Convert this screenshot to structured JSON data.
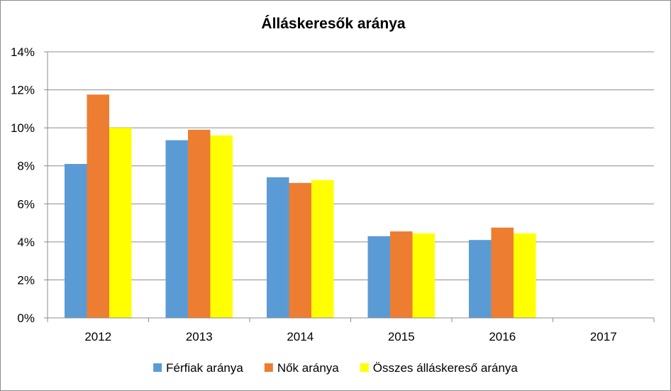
{
  "chart_data": {
    "type": "bar",
    "title": "Álláskeresők aránya",
    "categories": [
      "2012",
      "2013",
      "2014",
      "2015",
      "2016",
      "2017"
    ],
    "series": [
      {
        "name": "Férfiak aránya",
        "color": "#5B9BD5",
        "values": [
          8.1,
          9.35,
          7.4,
          4.3,
          4.1,
          null
        ]
      },
      {
        "name": "Nők aránya",
        "color": "#ED7D31",
        "values": [
          11.75,
          9.9,
          7.1,
          4.55,
          4.75,
          null
        ]
      },
      {
        "name": "Összes álláskereső aránya",
        "color": "#FFFF00",
        "values": [
          10.0,
          9.6,
          7.25,
          4.45,
          4.45,
          null
        ]
      }
    ],
    "ylim": [
      0,
      14
    ],
    "yticks": [
      0,
      2,
      4,
      6,
      8,
      10,
      12,
      14
    ],
    "ytick_labels": [
      "0%",
      "2%",
      "4%",
      "6%",
      "8%",
      "10%",
      "12%",
      "14%"
    ],
    "grid": true,
    "legend_position": "bottom",
    "xlabel": "",
    "ylabel": ""
  }
}
